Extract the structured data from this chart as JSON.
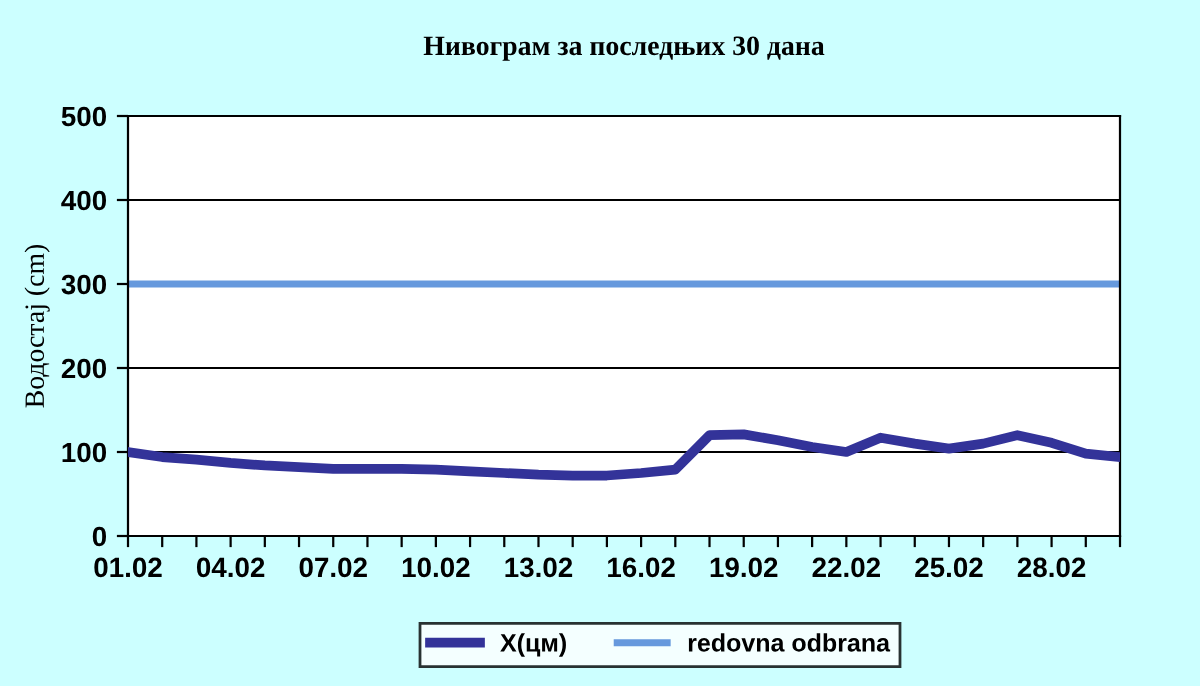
{
  "chart_data": {
    "type": "line",
    "title": "Нивограм за последњих 30 дана",
    "ylabel": "Водостај (cm)",
    "categories": [
      "01.02",
      null,
      null,
      "04.02",
      null,
      null,
      "07.02",
      null,
      null,
      "10.02",
      null,
      null,
      "13.02",
      null,
      null,
      "16.02",
      null,
      null,
      "19.02",
      null,
      null,
      "22.02",
      null,
      null,
      "25.02",
      null,
      null,
      "28.02",
      null,
      null
    ],
    "series": [
      {
        "name": "X(цм)",
        "color": "#333399",
        "values": [
          100,
          94,
          91,
          87,
          84,
          82,
          80,
          80,
          80,
          79,
          77,
          75,
          73,
          72,
          72,
          75,
          79,
          120,
          121,
          114,
          106,
          100,
          117,
          110,
          104,
          110,
          120,
          111,
          98,
          94
        ]
      }
    ],
    "ref_lines": [
      {
        "axis": "y",
        "value": 300,
        "label": "redovna odbrana",
        "color": "#6699dd"
      }
    ],
    "ylim": [
      0,
      500
    ],
    "yticks": [
      0,
      100,
      200,
      300,
      400,
      500
    ],
    "grid": "y",
    "legend": "bottom",
    "marker": "none",
    "line_style": "solid"
  }
}
